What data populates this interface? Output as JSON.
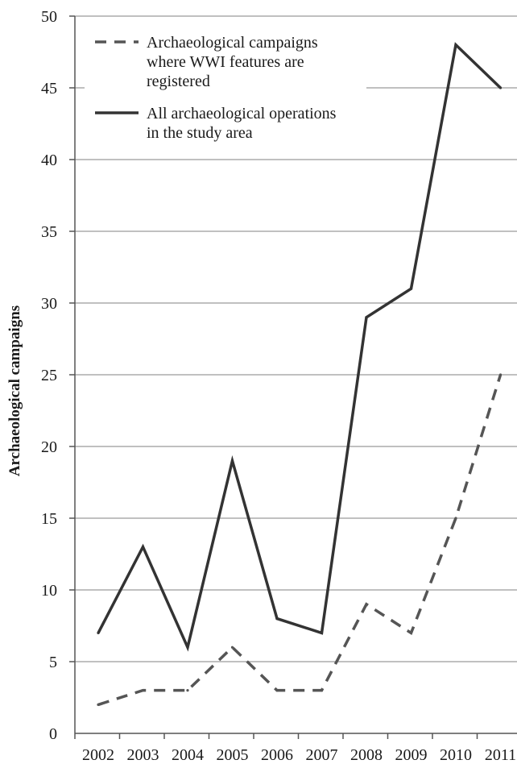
{
  "chart_data": {
    "type": "line",
    "title": "",
    "xlabel": "",
    "ylabel": "Archaeological campaigns",
    "x": [
      "2002",
      "2003",
      "2004",
      "2005",
      "2006",
      "2007",
      "2008",
      "2009",
      "2010",
      "2011"
    ],
    "ylim": [
      0,
      50
    ],
    "yticks": [
      "0",
      "5",
      "10",
      "15",
      "20",
      "25",
      "30",
      "35",
      "40",
      "45",
      "50"
    ],
    "grid": "horizontal",
    "legend_position": "top-left",
    "series": [
      {
        "name": "Archaeological campaigns where WWI features are registered",
        "legend_lines": [
          "Archaeological campaigns",
          "where WWI features are",
          "registered"
        ],
        "style": "dashed",
        "color": "#555555",
        "values": [
          2,
          3,
          3,
          6,
          3,
          3,
          9,
          7,
          15,
          25
        ]
      },
      {
        "name": "All archaeological operations in the study area",
        "legend_lines": [
          "All archaeological operations",
          "in the study area"
        ],
        "style": "solid",
        "color": "#333333",
        "values": [
          7,
          13,
          6,
          19,
          8,
          7,
          29,
          31,
          48,
          45
        ]
      }
    ]
  }
}
